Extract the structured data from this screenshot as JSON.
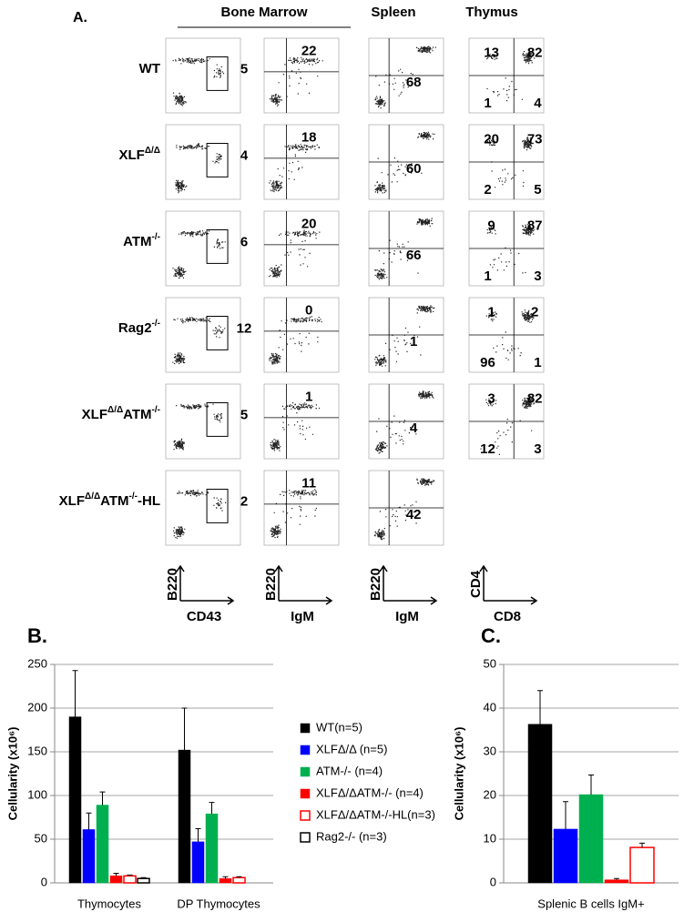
{
  "panel_a": {
    "label": "A.",
    "tissues": [
      "Bone Marrow",
      "Spleen",
      "Thymus"
    ],
    "rows": [
      {
        "genotype": [
          {
            "text": "WT"
          }
        ],
        "bm_cd43": 5,
        "bm_igm": 22,
        "spleen": 68,
        "thymus": [
          13,
          82,
          1,
          4
        ]
      },
      {
        "genotype": [
          {
            "text": "XLF"
          },
          {
            "text": "Δ/Δ",
            "sup": true
          }
        ],
        "bm_cd43": 4,
        "bm_igm": 18,
        "spleen": 60,
        "thymus": [
          20,
          73,
          2,
          5
        ]
      },
      {
        "genotype": [
          {
            "text": "ATM"
          },
          {
            "text": "-/-",
            "sup": true
          }
        ],
        "bm_cd43": 6,
        "bm_igm": 20,
        "spleen": 66,
        "thymus": [
          9,
          87,
          1,
          3
        ]
      },
      {
        "genotype": [
          {
            "text": "Rag2"
          },
          {
            "text": "-/-",
            "sup": true
          }
        ],
        "bm_cd43": 12,
        "bm_igm": 0,
        "spleen": 1,
        "thymus": [
          1,
          2,
          96,
          1
        ]
      },
      {
        "genotype": [
          {
            "text": "XLF"
          },
          {
            "text": "Δ/Δ",
            "sup": true
          },
          {
            "text": "ATM"
          },
          {
            "text": "-/-",
            "sup": true
          }
        ],
        "bm_cd43": 5,
        "bm_igm": 1,
        "spleen": 4,
        "thymus": [
          3,
          82,
          12,
          3
        ]
      },
      {
        "genotype": [
          {
            "text": "XLF"
          },
          {
            "text": "Δ/Δ",
            "sup": true
          },
          {
            "text": "ATM"
          },
          {
            "text": "-/-",
            "sup": true
          },
          {
            "text": "-HL"
          }
        ],
        "bm_cd43": 2,
        "bm_igm": 11,
        "spleen": 42
      }
    ],
    "axes": [
      {
        "y": "B220",
        "x": "CD43"
      },
      {
        "y": "B220",
        "x": "IgM"
      },
      {
        "y": "B220",
        "x": "IgM"
      },
      {
        "y": "CD4",
        "x": "CD8"
      }
    ]
  },
  "chart_data": [
    {
      "type": "bar",
      "title": "B.",
      "y_label": "Cellularity (x10⁶)",
      "categories": [
        "Thymocytes",
        "DP Thymocytes"
      ],
      "series": [
        {
          "name": "WT(n=5)",
          "color": "#000000",
          "values": [
            190,
            152
          ],
          "errors": [
            53,
            48
          ]
        },
        {
          "name": "XLFΔ/Δ (n=5)",
          "color": "#0000ff",
          "values": [
            61,
            47
          ],
          "errors": [
            19,
            15
          ]
        },
        {
          "name": "ATM-/- (n=4)",
          "color": "#00b050",
          "values": [
            89,
            79
          ],
          "errors": [
            15,
            13
          ]
        },
        {
          "name": "XLFΔ/ΔATM-/- (n=4)",
          "color": "#ff0000",
          "values": [
            8,
            5
          ],
          "errors": [
            3,
            2
          ]
        },
        {
          "name": "XLFΔ/ΔATM-/-HL(n=3)",
          "color": "#ff0000",
          "outline": true,
          "values": [
            8,
            6
          ],
          "errors": [
            1,
            1
          ]
        },
        {
          "name": "Rag2-/- (n=3)",
          "color": "#000000",
          "outline": true,
          "values": [
            5,
            null
          ],
          "errors": [
            1,
            null
          ]
        }
      ],
      "ylim": [
        0,
        250
      ],
      "yticks": [
        0,
        50,
        100,
        150,
        200,
        250
      ],
      "grid": true,
      "legend": "right"
    },
    {
      "type": "bar",
      "title": "C.",
      "y_label": "Cellularity (x10⁶)",
      "categories": [
        "Splenic B cells IgM+"
      ],
      "series": [
        {
          "color": "#000000",
          "values": [
            36.3
          ],
          "errors": [
            7.7
          ]
        },
        {
          "color": "#0000ff",
          "values": [
            12.3
          ],
          "errors": [
            6.3
          ]
        },
        {
          "color": "#00b050",
          "values": [
            20.2
          ],
          "errors": [
            4.5
          ]
        },
        {
          "color": "#ff0000",
          "values": [
            0.7
          ],
          "errors": [
            0.3
          ]
        },
        {
          "color": "#ff0000",
          "outline": true,
          "values": [
            8.1
          ],
          "errors": [
            1
          ]
        }
      ],
      "ylim": [
        0,
        50
      ],
      "yticks": [
        0,
        10,
        20,
        30,
        40,
        50
      ],
      "grid": true
    }
  ]
}
